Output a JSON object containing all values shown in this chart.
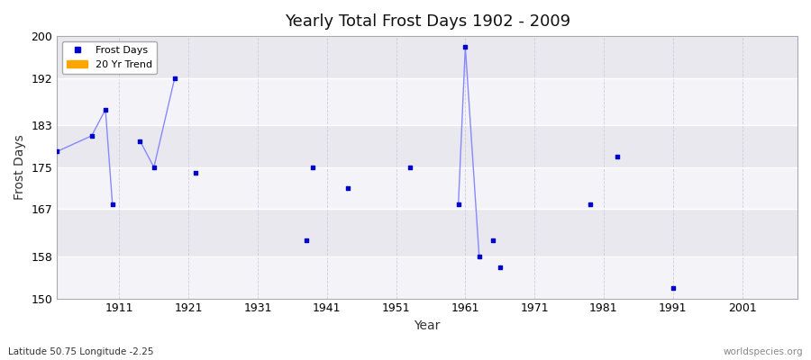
{
  "title": "Yearly Total Frost Days 1902 - 2009",
  "xlabel": "Year",
  "ylabel": "Frost Days",
  "xlim": [
    1902,
    2009
  ],
  "ylim": [
    150,
    200
  ],
  "yticks": [
    150,
    158,
    167,
    175,
    183,
    192,
    200
  ],
  "xticks": [
    1911,
    1921,
    1931,
    1941,
    1951,
    1961,
    1971,
    1981,
    1991,
    2001
  ],
  "background_color": "#ffffff",
  "plot_bg_color": "#f0f0f5",
  "band_colors": [
    "#e8e8ee",
    "#f4f4f8"
  ],
  "grid_color": "#ffffff",
  "vgrid_color": "#ccccdd",
  "point_color": "#0000cc",
  "line_color": "#8888ff",
  "subtitle_left": "Latitude 50.75 Longitude -2.25",
  "subtitle_right": "worldspecies.org",
  "data_points": [
    [
      1902,
      178
    ],
    [
      1907,
      181
    ],
    [
      1909,
      186
    ],
    [
      1910,
      168
    ],
    [
      1914,
      180
    ],
    [
      1916,
      175
    ],
    [
      1919,
      192
    ],
    [
      1922,
      174
    ],
    [
      1938,
      161
    ],
    [
      1939,
      175
    ],
    [
      1944,
      171
    ],
    [
      1953,
      175
    ],
    [
      1960,
      168
    ],
    [
      1961,
      198
    ],
    [
      1963,
      158
    ],
    [
      1965,
      161
    ],
    [
      1966,
      156
    ],
    [
      1979,
      168
    ],
    [
      1983,
      177
    ],
    [
      1991,
      152
    ]
  ],
  "connected_groups": [
    [
      [
        1902,
        178
      ],
      [
        1907,
        181
      ],
      [
        1909,
        186
      ],
      [
        1910,
        168
      ]
    ],
    [
      [
        1914,
        180
      ],
      [
        1916,
        175
      ],
      [
        1919,
        192
      ]
    ],
    [
      [
        1960,
        168
      ],
      [
        1961,
        198
      ],
      [
        1963,
        158
      ]
    ]
  ],
  "band_ranges": [
    [
      200,
      192
    ],
    [
      192,
      183
    ],
    [
      183,
      175
    ],
    [
      175,
      167
    ],
    [
      167,
      158
    ],
    [
      158,
      150
    ]
  ]
}
